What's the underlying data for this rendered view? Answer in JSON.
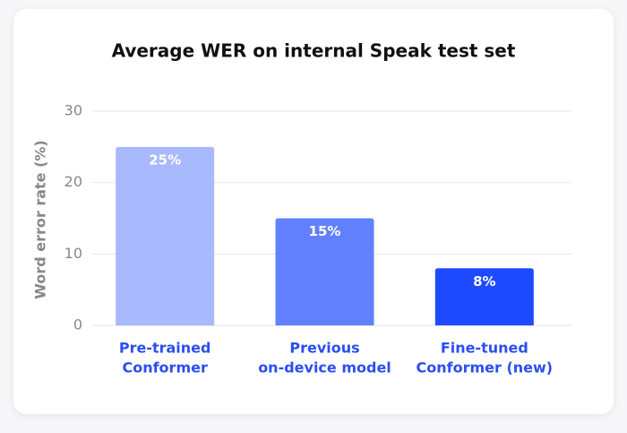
{
  "chart_data": {
    "type": "bar",
    "title": "Average WER on internal Speak test set",
    "y_label": "Word error rate (%)",
    "categories": [
      [
        "Pre-trained",
        "Conformer"
      ],
      [
        "Previous",
        "on-device model"
      ],
      [
        "Fine-tuned",
        "Conformer (new)"
      ]
    ],
    "values": [
      25,
      15,
      8
    ],
    "value_labels": [
      "25%",
      "15%",
      "8%"
    ],
    "colors": [
      "#a9b9fe",
      "#6381fe",
      "#1f4bff"
    ],
    "ylim": [
      0,
      30
    ],
    "yticks": [
      0,
      10,
      20,
      30
    ],
    "grid": true
  }
}
